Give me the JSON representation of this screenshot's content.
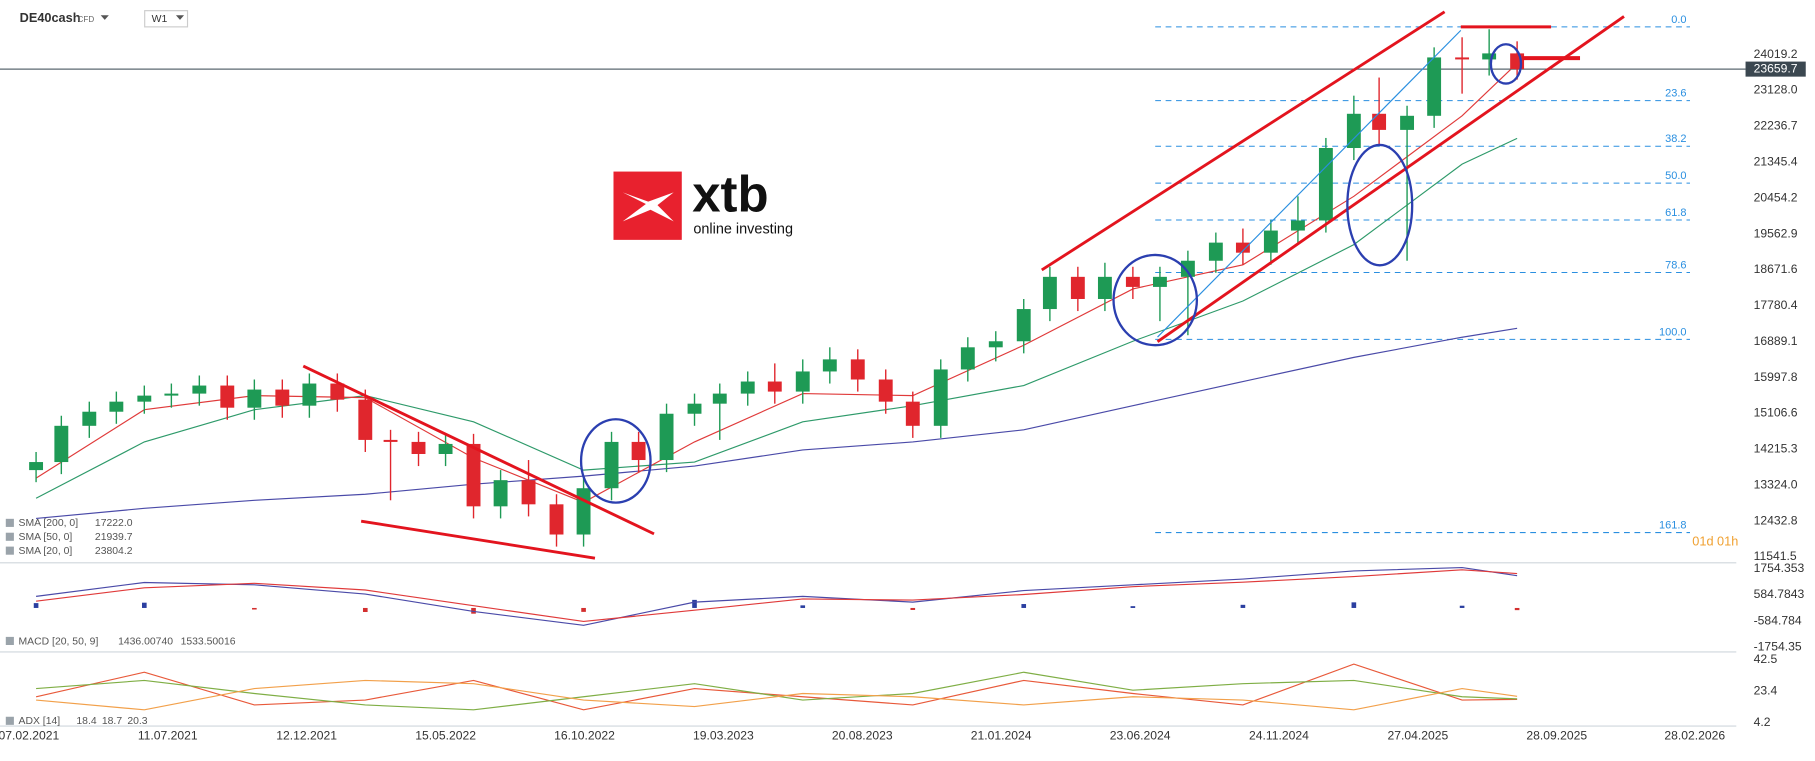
{
  "header": {
    "symbol": "DE40cash",
    "instrument_type": "CFD",
    "timeframe": "W1"
  },
  "chart_data": [
    {
      "type": "candlestick",
      "x": [
        "15.02.2021",
        "15.03.2021",
        "15.04.2021",
        "15.05.2021",
        "15.06.2021",
        "15.07.2021",
        "15.08.2021",
        "15.09.2021",
        "15.10.2021",
        "15.11.2021",
        "15.12.2021",
        "15.01.2022",
        "15.02.2022",
        "15.03.2022",
        "15.04.2022",
        "15.05.2022",
        "15.06.2022",
        "15.07.2022",
        "15.08.2022",
        "15.09.2022",
        "15.10.2022",
        "15.11.2022",
        "15.12.2022",
        "15.01.2023",
        "15.02.2023",
        "15.03.2023",
        "15.04.2023",
        "15.05.2023",
        "15.06.2023",
        "15.07.2023",
        "15.08.2023",
        "15.09.2023",
        "15.10.2023",
        "15.11.2023",
        "15.12.2023",
        "15.01.2024",
        "15.02.2024",
        "15.03.2024",
        "15.04.2024",
        "15.05.2024",
        "15.06.2024",
        "15.07.2024",
        "15.08.2024",
        "15.09.2024",
        "15.10.2024",
        "15.11.2024",
        "15.12.2024",
        "15.01.2025",
        "15.02.2025",
        "15.03.2025",
        "15.04.2025",
        "15.05.2025",
        "15.06.2025",
        "15.07.2025",
        "15.08.2025"
      ],
      "open": [
        13700,
        13900,
        14800,
        15150,
        15400,
        15550,
        15600,
        15800,
        15250,
        15700,
        15300,
        15850,
        15450,
        14450,
        14400,
        14100,
        14350,
        12800,
        13450,
        12850,
        12100,
        13250,
        14400,
        13950,
        15100,
        15350,
        15600,
        15900,
        15650,
        16150,
        16450,
        15950,
        15400,
        14800,
        16200,
        16750,
        16900,
        17700,
        18500,
        17950,
        18500,
        18250,
        18500,
        18900,
        19350,
        19100,
        19650,
        19900,
        21700,
        22550,
        22150,
        22500,
        23950,
        23900,
        24050
      ],
      "high": [
        14150,
        15050,
        15400,
        15650,
        15800,
        15850,
        16050,
        16050,
        15950,
        15950,
        16100,
        16100,
        15700,
        14700,
        14650,
        14600,
        14600,
        13700,
        13950,
        13100,
        13500,
        14650,
        14650,
        15350,
        15600,
        15850,
        16150,
        16350,
        16450,
        16750,
        16700,
        16200,
        15650,
        16450,
        17000,
        17150,
        17950,
        18750,
        18750,
        18850,
        18750,
        18750,
        19150,
        19600,
        19700,
        19900,
        20500,
        21950,
        23000,
        23450,
        22750,
        24200,
        24450,
        24650,
        24350
      ],
      "low": [
        13400,
        13600,
        14500,
        14850,
        15100,
        15250,
        15300,
        14950,
        14950,
        15000,
        15000,
        15150,
        14150,
        12950,
        13800,
        13800,
        12500,
        12500,
        12550,
        11800,
        11800,
        12950,
        13650,
        13650,
        14800,
        14450,
        15300,
        15350,
        15350,
        15850,
        15650,
        15100,
        14500,
        14500,
        15900,
        16400,
        16600,
        17400,
        17650,
        17650,
        17950,
        17400,
        17050,
        18600,
        18800,
        18800,
        19350,
        19600,
        21400,
        21800,
        18900,
        22200,
        23050,
        23500,
        23400
      ],
      "close": [
        13900,
        14800,
        15150,
        15400,
        15550,
        15600,
        15800,
        15250,
        15700,
        15300,
        15850,
        15450,
        14450,
        14400,
        14100,
        14350,
        12800,
        13450,
        12850,
        12100,
        13250,
        14400,
        13950,
        15100,
        15350,
        15600,
        15900,
        15650,
        16150,
        16450,
        15950,
        15400,
        14800,
        16200,
        16750,
        16900,
        17700,
        18500,
        17950,
        18500,
        18250,
        18500,
        18900,
        19350,
        19100,
        19650,
        19900,
        21700,
        22550,
        22150,
        22500,
        23950,
        23900,
        24050,
        23660
      ],
      "up_color": "#1e9a55",
      "down_color": "#e0262d",
      "series": [
        {
          "name": "SMA [200, 0]",
          "legend_value": "17222.0",
          "color": "#4a4aa8",
          "x": [
            "15.02.2021",
            "15.06.2021",
            "15.10.2021",
            "15.02.2022",
            "15.06.2022",
            "15.10.2022",
            "15.02.2023",
            "15.06.2023",
            "15.10.2023",
            "15.02.2024",
            "15.06.2024",
            "15.10.2024",
            "15.02.2025",
            "15.06.2025",
            "15.08.2025"
          ],
          "values": [
            12500,
            12750,
            12950,
            13100,
            13350,
            13550,
            13800,
            14200,
            14400,
            14700,
            15300,
            15900,
            16500,
            17000,
            17222
          ]
        },
        {
          "name": "SMA [50, 0]",
          "legend_value": "21939.7",
          "color": "#2e9a6a",
          "x": [
            "15.02.2021",
            "15.06.2021",
            "15.10.2021",
            "15.02.2022",
            "15.06.2022",
            "15.10.2022",
            "15.02.2023",
            "15.06.2023",
            "15.10.2023",
            "15.02.2024",
            "15.06.2024",
            "15.10.2024",
            "15.02.2025",
            "15.06.2025",
            "15.08.2025"
          ],
          "values": [
            13000,
            14400,
            15200,
            15550,
            14900,
            13700,
            13900,
            14900,
            15300,
            15800,
            16900,
            17900,
            19300,
            21300,
            21939.7
          ]
        },
        {
          "name": "SMA [20, 0]",
          "legend_value": "23804.2",
          "color": "#e03a3a",
          "x": [
            "15.02.2021",
            "15.06.2021",
            "15.10.2021",
            "15.02.2022",
            "15.06.2022",
            "15.10.2022",
            "15.02.2023",
            "15.06.2023",
            "15.10.2023",
            "15.02.2024",
            "15.06.2024",
            "15.10.2024",
            "15.02.2025",
            "15.06.2025",
            "15.08.2025"
          ],
          "values": [
            13500,
            15200,
            15550,
            15500,
            14000,
            12900,
            14400,
            15600,
            15550,
            16800,
            18200,
            18800,
            20500,
            22500,
            23804.2
          ]
        }
      ],
      "ylim": [
        11426,
        25370
      ],
      "yticks": [
        24019.2,
        {
          "value": 23128,
          "label": "23128.0"
        },
        22236.7,
        21345.4,
        20454.2,
        19562.9,
        18671.6,
        17780.4,
        16889.1,
        15997.8,
        15106.6,
        14215.3,
        {
          "value": 13324,
          "label": "13324.0"
        },
        12432.8,
        11541.5
      ],
      "xlim": [
        "06.01.2021",
        "15.04.2026"
      ],
      "xticks": [
        "07.02.2021",
        "11.07.2021",
        "12.12.2021",
        "15.05.2022",
        "16.10.2022",
        "19.03.2023",
        "20.08.2023",
        "21.01.2024",
        "23.06.2024",
        "24.11.2024",
        "27.04.2025",
        "28.09.2025",
        "28.02.2026"
      ],
      "last_price": 23659.7,
      "countdown": "01d 01h",
      "fibonacci": {
        "high": 24709,
        "low": 16946,
        "color": "#2a8fe0",
        "levels": [
          {
            "value": 0,
            "label": "0.0"
          },
          23.6,
          38.2,
          {
            "value": 50,
            "label": "50.0"
          },
          61.8,
          78.6,
          {
            "value": 100,
            "label": "100.0"
          },
          161.8
        ]
      }
    },
    {
      "type": "macd",
      "name": "MACD [20, 50, 9]",
      "x": [
        "15.02.2021",
        "15.06.2021",
        "15.10.2021",
        "15.02.2022",
        "15.06.2022",
        "15.10.2022",
        "15.02.2023",
        "15.06.2023",
        "15.10.2023",
        "15.02.2024",
        "15.06.2024",
        "15.10.2024",
        "15.02.2025",
        "15.06.2025",
        "15.08.2025"
      ],
      "series": [
        {
          "legend_value": "1436.00740",
          "color": "#4a4aa8",
          "values": [
            516,
            1135,
            1030,
            620,
            -155,
            -775,
            260,
            516,
            260,
            775,
            1030,
            1290,
            1650,
            1800,
            1436.0074
          ]
        },
        {
          "legend_value": "1533.50016",
          "color": "#e03a3a",
          "values": [
            300,
            900,
            1100,
            800,
            100,
            -600,
            -100,
            400,
            350,
            600,
            950,
            1150,
            1400,
            1700,
            1533.50016
          ]
        }
      ],
      "histogram": [
        216,
        235,
        -70,
        -180,
        -255,
        -175,
        360,
        116,
        -90,
        175,
        80,
        140,
        250,
        100,
        -97
      ],
      "histogram_up_color": "#2b3fa0",
      "histogram_down_color": "#d32f2f",
      "ylim": [
        -1909,
        1961
      ],
      "yticks": [
        1754.353,
        584.7843,
        -584.784,
        -1754.35
      ]
    },
    {
      "type": "adx",
      "name": "ADX [14]",
      "x": [
        "15.02.2021",
        "15.06.2021",
        "15.10.2021",
        "15.02.2022",
        "15.06.2022",
        "15.10.2022",
        "15.02.2023",
        "15.06.2023",
        "15.10.2023",
        "15.02.2024",
        "15.06.2024",
        "15.10.2024",
        "15.02.2025",
        "15.06.2025",
        "15.08.2025"
      ],
      "series": [
        {
          "color": "#e8593a",
          "values": [
            20,
            35,
            15,
            18,
            30,
            12,
            25,
            20,
            15,
            30,
            22,
            15,
            40,
            18,
            18.4
          ]
        },
        {
          "color": "#7fae45",
          "values": [
            25,
            30,
            22,
            15,
            12,
            20,
            28,
            18,
            22,
            35,
            24,
            28,
            30,
            20,
            18.7
          ]
        },
        {
          "color": "#f2a04a",
          "values": [
            18,
            12,
            25,
            30,
            28,
            18,
            14,
            22,
            20,
            15,
            20,
            18,
            12,
            25,
            20.3
          ]
        }
      ],
      "ylim": [
        2.1,
        46
      ],
      "yticks": [
        42.5,
        23.4,
        4.2
      ]
    }
  ]
}
